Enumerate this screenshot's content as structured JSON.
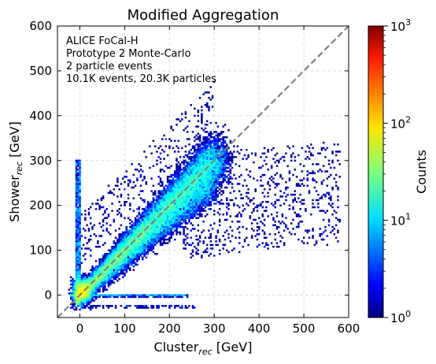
{
  "chart_data": {
    "type": "heatmap",
    "title": "Modified Aggregation",
    "xlabel": {
      "main": "Cluster",
      "sub": "rec",
      "unit": " [GeV]"
    },
    "ylabel": {
      "main": "Shower",
      "sub": "rec",
      "unit": " [GeV]"
    },
    "xlim": [
      -50,
      600
    ],
    "ylim": [
      -50,
      600
    ],
    "xticks": [
      "0",
      "100",
      "200",
      "300",
      "400",
      "500",
      "600"
    ],
    "yticks": [
      "0",
      "100",
      "200",
      "300",
      "400",
      "500",
      "600"
    ],
    "xtick_values": [
      0,
      100,
      200,
      300,
      400,
      500,
      600
    ],
    "ytick_values": [
      0,
      100,
      200,
      300,
      400,
      500,
      600
    ],
    "grid": true,
    "diagonal_reference": {
      "from": [
        -50,
        -50
      ],
      "to": [
        600,
        600
      ],
      "style": "dashed",
      "color": "#808080"
    },
    "annotation": [
      "ALICE FoCal-H",
      "Prototype 2 Monte-Carlo",
      "2 particle events",
      "10.1K events, 20.3K particles"
    ],
    "colorbar": {
      "label": "Counts",
      "scale": "log",
      "range": [
        1,
        1000
      ],
      "tick_base": "10",
      "tick_exponents": [
        "0",
        "1",
        "2",
        "3"
      ],
      "colormap": "jet"
    },
    "distribution": {
      "main_band": {
        "slope": 1.0,
        "x_range": [
          0,
          300
        ],
        "peak_counts": 300
      },
      "secondary_band": {
        "slope": 0.8,
        "x_range": [
          0,
          300
        ]
      },
      "vertical_stripe_x": 0,
      "horizontal_stripe_y": 0,
      "sparse_region_x": [
        250,
        580
      ]
    }
  }
}
